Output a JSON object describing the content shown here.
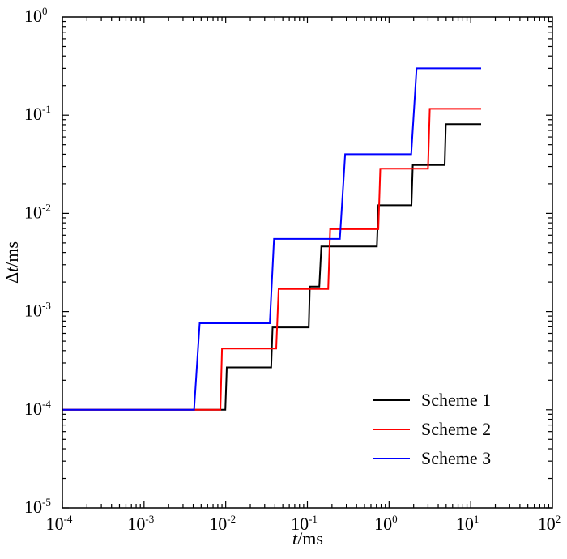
{
  "chart_data": {
    "type": "line",
    "title": "",
    "xlabel": {
      "italic": "t",
      "rest": "/ms"
    },
    "ylabel": {
      "prefix": "Δ",
      "italic": "t",
      "rest": "/ms"
    },
    "xscale": "log",
    "yscale": "log",
    "xlim": [
      0.0001,
      100
    ],
    "ylim": [
      1e-05,
      1
    ],
    "x_ticks": [
      {
        "base": "10",
        "exp": "-4",
        "value": 0.0001
      },
      {
        "base": "10",
        "exp": "-3",
        "value": 0.001
      },
      {
        "base": "10",
        "exp": "-2",
        "value": 0.01
      },
      {
        "base": "10",
        "exp": "-1",
        "value": 0.1
      },
      {
        "base": "10",
        "exp": "0",
        "value": 1
      },
      {
        "base": "10",
        "exp": "1",
        "value": 10
      },
      {
        "base": "10",
        "exp": "2",
        "value": 100
      }
    ],
    "y_ticks": [
      {
        "base": "10",
        "exp": "-5",
        "value": 1e-05
      },
      {
        "base": "10",
        "exp": "-4",
        "value": 0.0001
      },
      {
        "base": "10",
        "exp": "-3",
        "value": 0.001
      },
      {
        "base": "10",
        "exp": "-2",
        "value": 0.01
      },
      {
        "base": "10",
        "exp": "-1",
        "value": 0.1
      },
      {
        "base": "10",
        "exp": "0",
        "value": 1
      }
    ],
    "grid": false,
    "legend_position": "bottom-right",
    "series": [
      {
        "name": "Scheme 1",
        "color": "#000000",
        "points": [
          [
            0.0001,
            0.0001
          ],
          [
            0.0099,
            0.0001
          ],
          [
            0.0103,
            0.00027
          ],
          [
            0.036,
            0.00027
          ],
          [
            0.0375,
            0.00069
          ],
          [
            0.104,
            0.00069
          ],
          [
            0.107,
            0.0018
          ],
          [
            0.14,
            0.0018
          ],
          [
            0.148,
            0.0046
          ],
          [
            0.71,
            0.0046
          ],
          [
            0.74,
            0.0121
          ],
          [
            1.88,
            0.0121
          ],
          [
            1.95,
            0.031
          ],
          [
            4.8,
            0.031
          ],
          [
            4.95,
            0.081
          ],
          [
            13.4,
            0.081
          ]
        ]
      },
      {
        "name": "Scheme 2",
        "color": "#ff0000",
        "points": [
          [
            0.0001,
            0.0001
          ],
          [
            0.0086,
            0.0001
          ],
          [
            0.009,
            0.00042
          ],
          [
            0.0415,
            0.00042
          ],
          [
            0.0445,
            0.0017
          ],
          [
            0.18,
            0.0017
          ],
          [
            0.19,
            0.0069
          ],
          [
            0.74,
            0.0069
          ],
          [
            0.78,
            0.0285
          ],
          [
            3.0,
            0.0285
          ],
          [
            3.15,
            0.116
          ],
          [
            13.4,
            0.116
          ]
        ]
      },
      {
        "name": "Scheme 3",
        "color": "#0000ff",
        "points": [
          [
            0.0001,
            0.0001
          ],
          [
            0.0041,
            0.0001
          ],
          [
            0.0048,
            0.00076
          ],
          [
            0.0347,
            0.00076
          ],
          [
            0.039,
            0.0055
          ],
          [
            0.25,
            0.0055
          ],
          [
            0.29,
            0.04
          ],
          [
            1.87,
            0.04
          ],
          [
            2.17,
            0.3
          ],
          [
            13.4,
            0.3
          ]
        ]
      }
    ]
  }
}
